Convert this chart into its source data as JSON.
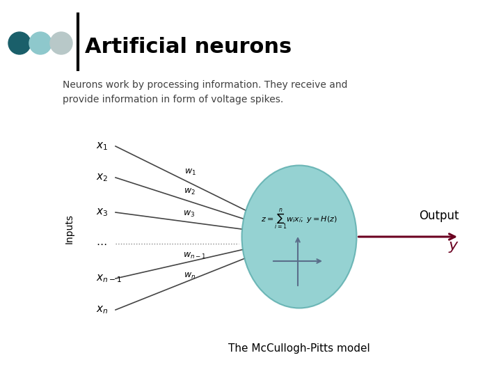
{
  "title": "Artificial neurons",
  "subtitle": "Neurons work by processing information. They receive and\nprovide information in form of voltage spikes.",
  "bg_color": "#ffffff",
  "dot_colors": [
    "#1a5f6a",
    "#8ec8cc",
    "#b8c8c8"
  ],
  "line_color": "#000000",
  "neuron_fill": "#7ec8c8",
  "neuron_edge": "#5aacac",
  "arrow_color": "#6b0020",
  "axis_color": "#5a6e8a",
  "output_label": "Output",
  "output_var": "y",
  "inputs_label": "Inputs",
  "bottom_label": "The McCullogh-Pitts model",
  "title_fontsize": 22,
  "subtitle_fontsize": 10,
  "input_fontsize": 11,
  "weight_fontsize": 9
}
